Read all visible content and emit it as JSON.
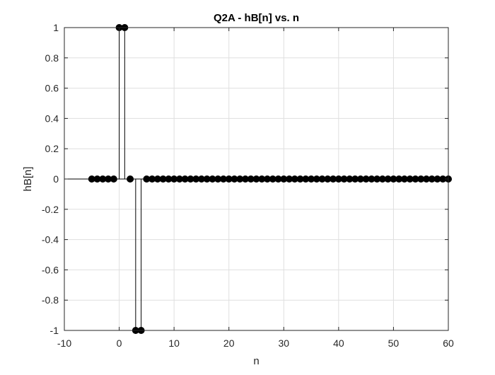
{
  "chart_data": {
    "type": "stem",
    "title": "Q2A - hB[n] vs. n",
    "xlabel": "n",
    "ylabel": "hB[n]",
    "xlim": [
      -10,
      60
    ],
    "ylim": [
      -1,
      1
    ],
    "xticks": [
      -10,
      0,
      10,
      20,
      30,
      40,
      50,
      60
    ],
    "yticks": [
      -1,
      -0.8,
      -0.6,
      -0.4,
      -0.2,
      0,
      0.2,
      0.4,
      0.6,
      0.8,
      1
    ],
    "xtick_labels": [
      "-10",
      "0",
      "10",
      "20",
      "30",
      "40",
      "50",
      "60"
    ],
    "ytick_labels": [
      "-1",
      "-0.8",
      "-0.6",
      "-0.4",
      "-0.2",
      "0",
      "0.2",
      "0.4",
      "0.6",
      "0.8",
      "1"
    ],
    "grid": true,
    "line_color": "#000000",
    "marker_color": "#000000",
    "grid_color": "#dfdfdf",
    "n_start": -5,
    "n_end": 60,
    "nonzero": [
      {
        "n": 0,
        "value": 1
      },
      {
        "n": 1,
        "value": 1
      },
      {
        "n": 3,
        "value": -1
      },
      {
        "n": 4,
        "value": -1
      }
    ]
  }
}
